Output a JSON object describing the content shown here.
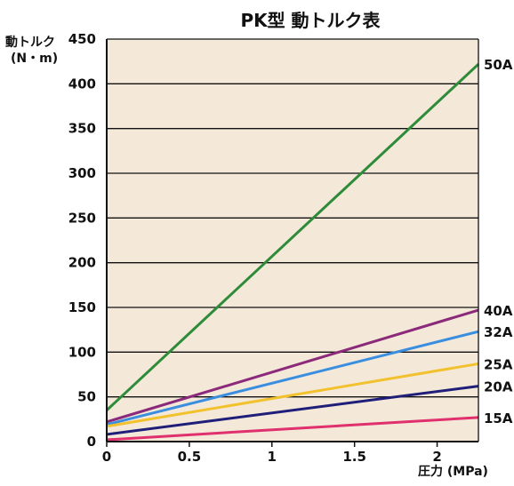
{
  "chart_data": {
    "type": "line",
    "title": "PK型 動トルク表",
    "ylabel": [
      "動トルク",
      "(N・m)"
    ],
    "xlabel": "圧力 (MPa)",
    "xlim": [
      0,
      2.25
    ],
    "ylim": [
      0,
      450
    ],
    "xticks": [
      0,
      0.5,
      1,
      1.5,
      2
    ],
    "xtick_labels": [
      "0",
      "0.5",
      "1",
      "1.5",
      "2"
    ],
    "yticks": [
      0,
      50,
      100,
      150,
      200,
      250,
      300,
      350,
      400,
      450
    ],
    "ytick_labels": [
      "0",
      "50",
      "100",
      "150",
      "200",
      "250",
      "300",
      "350",
      "400",
      "450"
    ],
    "grid": "horizontal",
    "plot_background": "#f4e8d8",
    "series": [
      {
        "name": "50A",
        "x": [
          0,
          2.25
        ],
        "y": [
          35,
          422
        ],
        "color": "#2e8b3a"
      },
      {
        "name": "40A",
        "x": [
          0,
          2.25
        ],
        "y": [
          22,
          147
        ],
        "color": "#8b2a7a"
      },
      {
        "name": "32A",
        "x": [
          0,
          2.25
        ],
        "y": [
          19,
          123
        ],
        "color": "#3a8ee0"
      },
      {
        "name": "25A",
        "x": [
          0,
          2.25
        ],
        "y": [
          17,
          87
        ],
        "color": "#f2c12e"
      },
      {
        "name": "20A",
        "x": [
          0,
          2.25
        ],
        "y": [
          8,
          62
        ],
        "color": "#1f1f7a"
      },
      {
        "name": "15A",
        "x": [
          0,
          2.25
        ],
        "y": [
          2,
          27
        ],
        "color": "#e0306e"
      }
    ]
  }
}
